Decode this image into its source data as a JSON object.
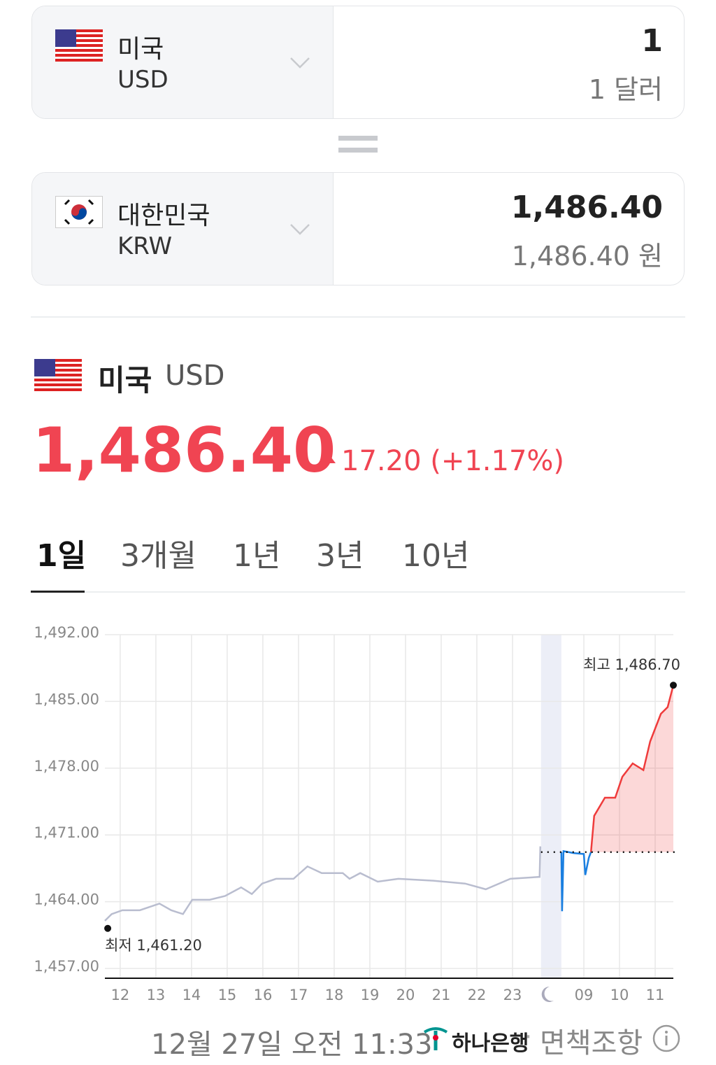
{
  "converter": {
    "from": {
      "name": "미국",
      "code": "USD",
      "amount": "1",
      "amount_text": "1 달러"
    },
    "to": {
      "name": "대한민국",
      "code": "KRW",
      "amount": "1,486.40",
      "amount_text": "1,486.40 원"
    }
  },
  "summary": {
    "name": "미국",
    "code": "USD",
    "price": "1,486.40",
    "change": "17.20 (+1.17%)"
  },
  "tabs": [
    "1일",
    "3개월",
    "1년",
    "3년",
    "10년"
  ],
  "chart": {
    "type": "line",
    "xlim": [
      -0.43,
      15.51
    ],
    "xticks": [
      {
        "value": 0,
        "label": "12"
      },
      {
        "value": 1,
        "label": "13"
      },
      {
        "value": 2,
        "label": "14"
      },
      {
        "value": 3,
        "label": "15"
      },
      {
        "value": 4,
        "label": "16"
      },
      {
        "value": 5,
        "label": "17"
      },
      {
        "value": 6,
        "label": "18"
      },
      {
        "value": 7,
        "label": "19"
      },
      {
        "value": 8,
        "label": "20"
      },
      {
        "value": 9,
        "label": "21"
      },
      {
        "value": 10,
        "label": "22"
      },
      {
        "value": 11,
        "label": "23"
      },
      {
        "value": 13,
        "label": "09"
      },
      {
        "value": 14,
        "label": "10"
      },
      {
        "value": 15,
        "label": "11"
      }
    ],
    "ylim": [
      1457,
      1492
    ],
    "yticks": [
      {
        "value": 1492,
        "label": "1,492.00"
      },
      {
        "value": 1485,
        "label": "1,485.00"
      },
      {
        "value": 1478,
        "label": "1,478.00"
      },
      {
        "value": 1471,
        "label": "1,471.00"
      },
      {
        "value": 1464,
        "label": "1,464.00"
      },
      {
        "value": 1457,
        "label": "1,457.00"
      }
    ],
    "grid": true,
    "night_band": [
      11.8,
      12.37
    ],
    "baseline": 1469.2,
    "series": [
      {
        "color": "#b9bdcf",
        "x": [
          -0.43,
          -0.24,
          0.06,
          0.55,
          1.1,
          1.43,
          1.76,
          2.02,
          2.51,
          2.94,
          3.39,
          3.69,
          3.98,
          4.37,
          4.86,
          5.25,
          5.65,
          6.24,
          6.43,
          6.73,
          7.22,
          7.8,
          8.78,
          9.67,
          10.25,
          10.94,
          11.76,
          11.78
        ],
        "values": [
          1462.0,
          1462.7,
          1463.1,
          1463.1,
          1463.8,
          1463.1,
          1462.7,
          1464.2,
          1464.2,
          1464.6,
          1465.5,
          1464.8,
          1465.9,
          1466.4,
          1466.4,
          1467.7,
          1467.0,
          1467.0,
          1466.4,
          1467.0,
          1466.1,
          1466.4,
          1466.2,
          1465.9,
          1465.3,
          1466.4,
          1466.6,
          1469.8
        ]
      },
      {
        "color": "#1a7fe0",
        "x": [
          12.37,
          12.39,
          12.43,
          12.71,
          13.0,
          13.04,
          13.14,
          13.2
        ],
        "values": [
          1469.2,
          1463.0,
          1469.3,
          1469.1,
          1469.0,
          1466.8,
          1468.6,
          1469.2
        ]
      },
      {
        "color": "#ef3b3b",
        "area": true,
        "x": [
          13.2,
          13.29,
          13.59,
          13.88,
          14.08,
          14.37,
          14.67,
          14.86,
          15.16,
          15.35,
          15.51
        ],
        "values": [
          1469.2,
          1473.0,
          1474.9,
          1474.9,
          1477.1,
          1478.5,
          1477.8,
          1480.8,
          1483.7,
          1484.4,
          1486.7
        ]
      }
    ],
    "high": {
      "x": 15.51,
      "value": 1486.7,
      "label": "최고 1,486.70"
    },
    "low": {
      "x": -0.35,
      "value": 1461.2,
      "label": "최저 1,461.20"
    }
  },
  "footer": {
    "time": "12월 27일 오전 11:33",
    "bank": "하나은행",
    "dot": "·",
    "disclaimer": "면책조항"
  }
}
